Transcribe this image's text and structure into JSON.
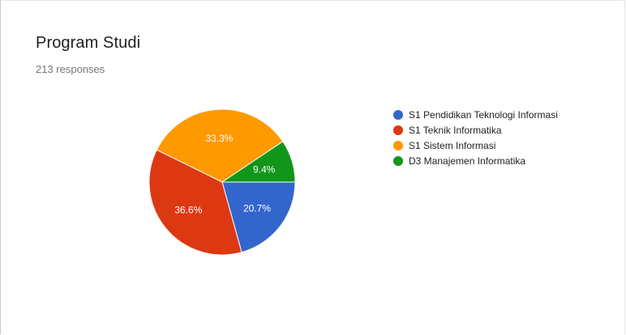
{
  "card": {
    "title": "Program Studi",
    "subtitle": "213 responses"
  },
  "chart_data": {
    "type": "pie",
    "title": "Program Studi",
    "subtitle": "213 responses",
    "legend_position": "right",
    "slices": [
      {
        "label": "S1 Pendidikan Teknologi Informasi",
        "value": 20.7,
        "display": "20.7%",
        "color": "#3366cc"
      },
      {
        "label": "S1 Teknik Informatika",
        "value": 36.6,
        "display": "36.6%",
        "color": "#dc3912"
      },
      {
        "label": "S1 Sistem Informasi",
        "value": 33.3,
        "display": "33.3%",
        "color": "#ff9900"
      },
      {
        "label": "D3 Manajemen Informatika",
        "value": 9.4,
        "display": "9.4%",
        "color": "#109618"
      }
    ]
  }
}
